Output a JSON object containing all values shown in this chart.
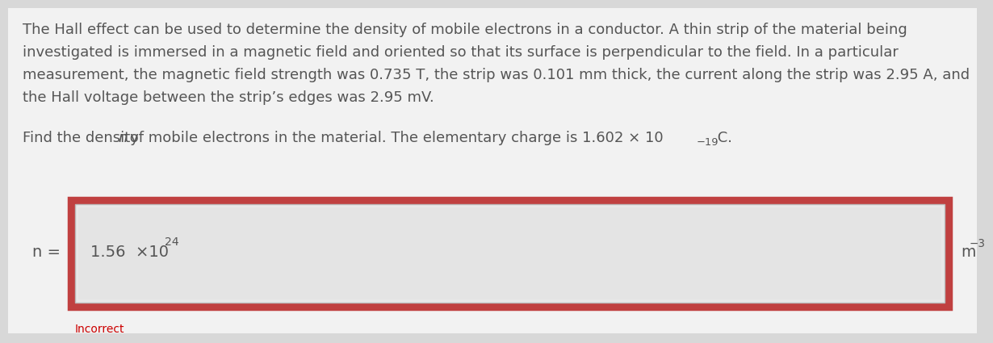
{
  "background_color": "#d8d8d8",
  "inner_area_color": "#f0f0f0",
  "paragraph_lines": [
    "The Hall effect can be used to determine the density of mobile electrons in a conductor. A thin strip of the material being",
    "investigated is immersed in a magnetic field and oriented so that its surface is perpendicular to the field. In a particular",
    "measurement, the magnetic field strength was 0.735 T, the strip was 0.101 mm thick, the current along the strip was 2.95 A, and",
    "the Hall voltage between the strip’s edges was 2.95 mV."
  ],
  "question_prefix": "Find the density ",
  "question_n_italic": "n",
  "question_suffix": " of mobile electrons in the material. The elementary charge is 1.602 × 10",
  "question_exp": "−19",
  "question_end": " C.",
  "n_label": "n =",
  "answer_main": "1.56  ×10",
  "answer_exp": "24",
  "unit_main": "m",
  "unit_exp": "−3",
  "incorrect_text": "Incorrect",
  "text_color": "#555555",
  "incorrect_color": "#cc0000",
  "box_outer_edgecolor": "#c04040",
  "box_outer_facecolor": "#c04040",
  "box_inner_facecolor": "#e8e8e8",
  "box_inner_edgecolor": "#bbbbbb",
  "input_field_facecolor": "#e4e4e4",
  "font_size_para": 13.0,
  "font_size_answer": 14.0,
  "font_size_label": 14.0,
  "font_size_unit": 13.5,
  "font_size_incorrect": 10.0
}
